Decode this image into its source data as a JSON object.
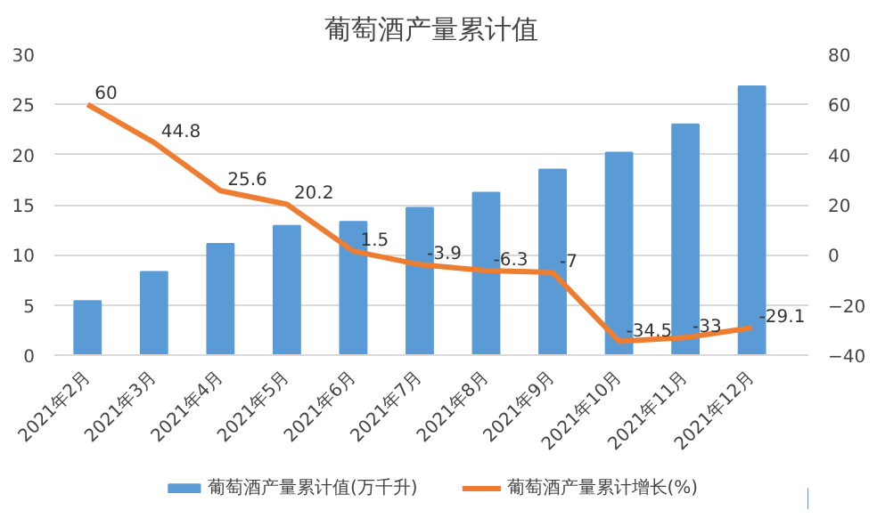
{
  "chart_data": {
    "type": "bar",
    "title": "葡萄酒产量累计值",
    "categories": [
      "2021年2月",
      "2021年3月",
      "2021年4月",
      "2021年5月",
      "2021年6月",
      "2021年7月",
      "2021年8月",
      "2021年9月",
      "2021年10月",
      "2021年11月",
      "2021年12月"
    ],
    "series": [
      {
        "name": "葡萄酒产量累计值(万千升)",
        "color": "#5b9bd5",
        "values": [
          5.4,
          8.3,
          11.1,
          12.9,
          13.3,
          14.7,
          16.2,
          18.5,
          20.2,
          23.0,
          26.8
        ]
      },
      {
        "name": "葡萄酒产量累计增长(%)",
        "type": "line",
        "axis": "y2",
        "color": "#ed7d31",
        "values": [
          60,
          44.8,
          25.6,
          20.2,
          1.5,
          -3.9,
          -6.3,
          -7,
          -34.5,
          -33,
          -29.1
        ],
        "value_labels": [
          "60",
          "44.8",
          "25.6",
          "20.2",
          "1.5",
          "-3.9",
          "-6.3",
          "-7",
          "-34.5",
          "-33",
          "-29.1"
        ]
      }
    ],
    "ylim": [
      0,
      30
    ],
    "yticks": [
      0,
      5,
      10,
      15,
      20,
      25,
      30
    ],
    "y2lim": [
      -40,
      80
    ],
    "y2ticks": [
      -40,
      -20,
      0,
      20,
      40,
      60,
      80
    ],
    "grid": "y",
    "legend": "bottom"
  }
}
